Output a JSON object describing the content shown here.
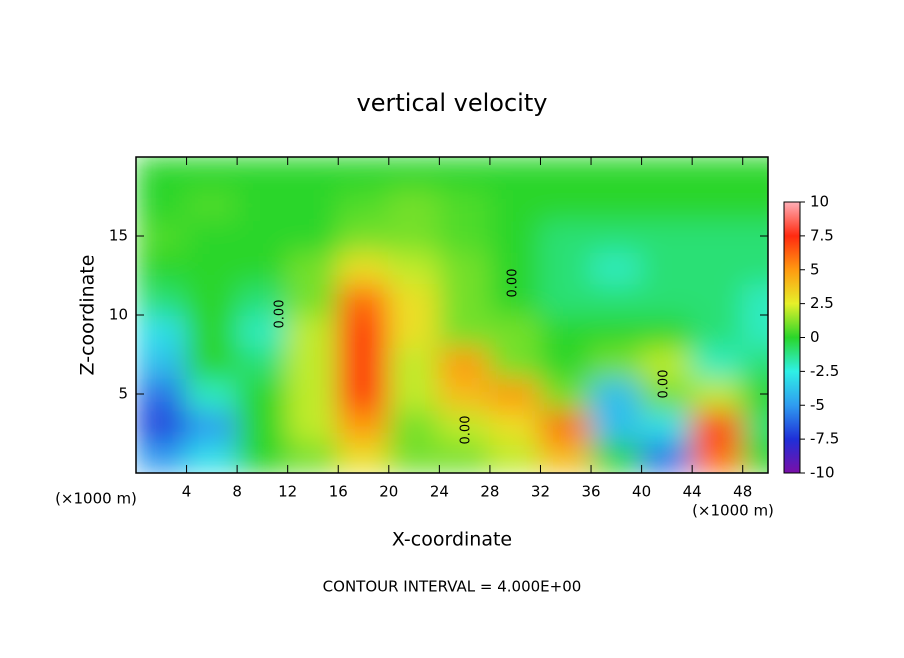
{
  "chart_data": {
    "type": "contour",
    "title": "vertical velocity",
    "x_label": "X-coordinate",
    "y_label": "Z-coordinate",
    "x_unit": "(×1000 m)",
    "y_unit": "(×1000 m)",
    "footnote": "CONTOUR INTERVAL = 4.000E+00",
    "annotations": [
      "0.00",
      "0.00",
      "0.00",
      "0.00"
    ],
    "xlim": [
      0,
      50
    ],
    "xticks": [
      4,
      8,
      12,
      16,
      20,
      24,
      28,
      32,
      36,
      40,
      44,
      48
    ],
    "ylim": [
      0,
      20
    ],
    "yticks": [
      5,
      10,
      15
    ],
    "clim": [
      -10,
      10
    ],
    "cticks": [
      -10,
      -7.5,
      -5,
      -2.5,
      0,
      2.5,
      5,
      7.5,
      10
    ],
    "colors": [
      "#7a0fa8",
      "#1f2fd8",
      "#2f9cf0",
      "#2ff0e6",
      "#2ad62a",
      "#e6f02a",
      "#ff9a10",
      "#ff2a10",
      "#ffb0b8"
    ],
    "x": [
      2,
      6,
      10,
      14,
      18,
      22,
      26,
      30,
      34,
      38,
      42,
      46,
      50
    ],
    "y": [
      1,
      3,
      5,
      7,
      9,
      11,
      13,
      15,
      17,
      19
    ],
    "z": [
      [
        -5,
        -3,
        0,
        1,
        3,
        1,
        1,
        2,
        4,
        0,
        -6,
        6,
        0
      ],
      [
        -7,
        -5,
        0,
        2,
        5,
        1,
        2,
        3,
        6,
        -4,
        -3,
        7,
        -1
      ],
      [
        -6,
        -2,
        0,
        2,
        7,
        2,
        4,
        5,
        1,
        -4,
        1,
        2,
        0
      ],
      [
        -4,
        0,
        -1,
        2,
        7,
        2,
        5,
        1,
        0,
        1,
        2,
        -2,
        -1
      ],
      [
        -3,
        0,
        -2,
        2,
        7,
        3,
        1,
        1,
        0,
        0,
        0,
        -1,
        -2
      ],
      [
        -1,
        0,
        -1,
        1,
        6,
        3,
        1,
        0,
        -1,
        -1,
        -1,
        -1,
        -2
      ],
      [
        0,
        0,
        0,
        1,
        3,
        2,
        1,
        0,
        -1,
        -2,
        -1,
        -1,
        -1
      ],
      [
        0.5,
        0,
        0,
        0,
        1,
        1,
        0.5,
        0,
        -1,
        -1,
        -1,
        -1,
        -1
      ],
      [
        0,
        0.5,
        0,
        0,
        0.5,
        1,
        0.5,
        0,
        0,
        0,
        0,
        0,
        0
      ],
      [
        0,
        0,
        0,
        0,
        0,
        0,
        0,
        0,
        0,
        0,
        0,
        0,
        0
      ]
    ]
  }
}
